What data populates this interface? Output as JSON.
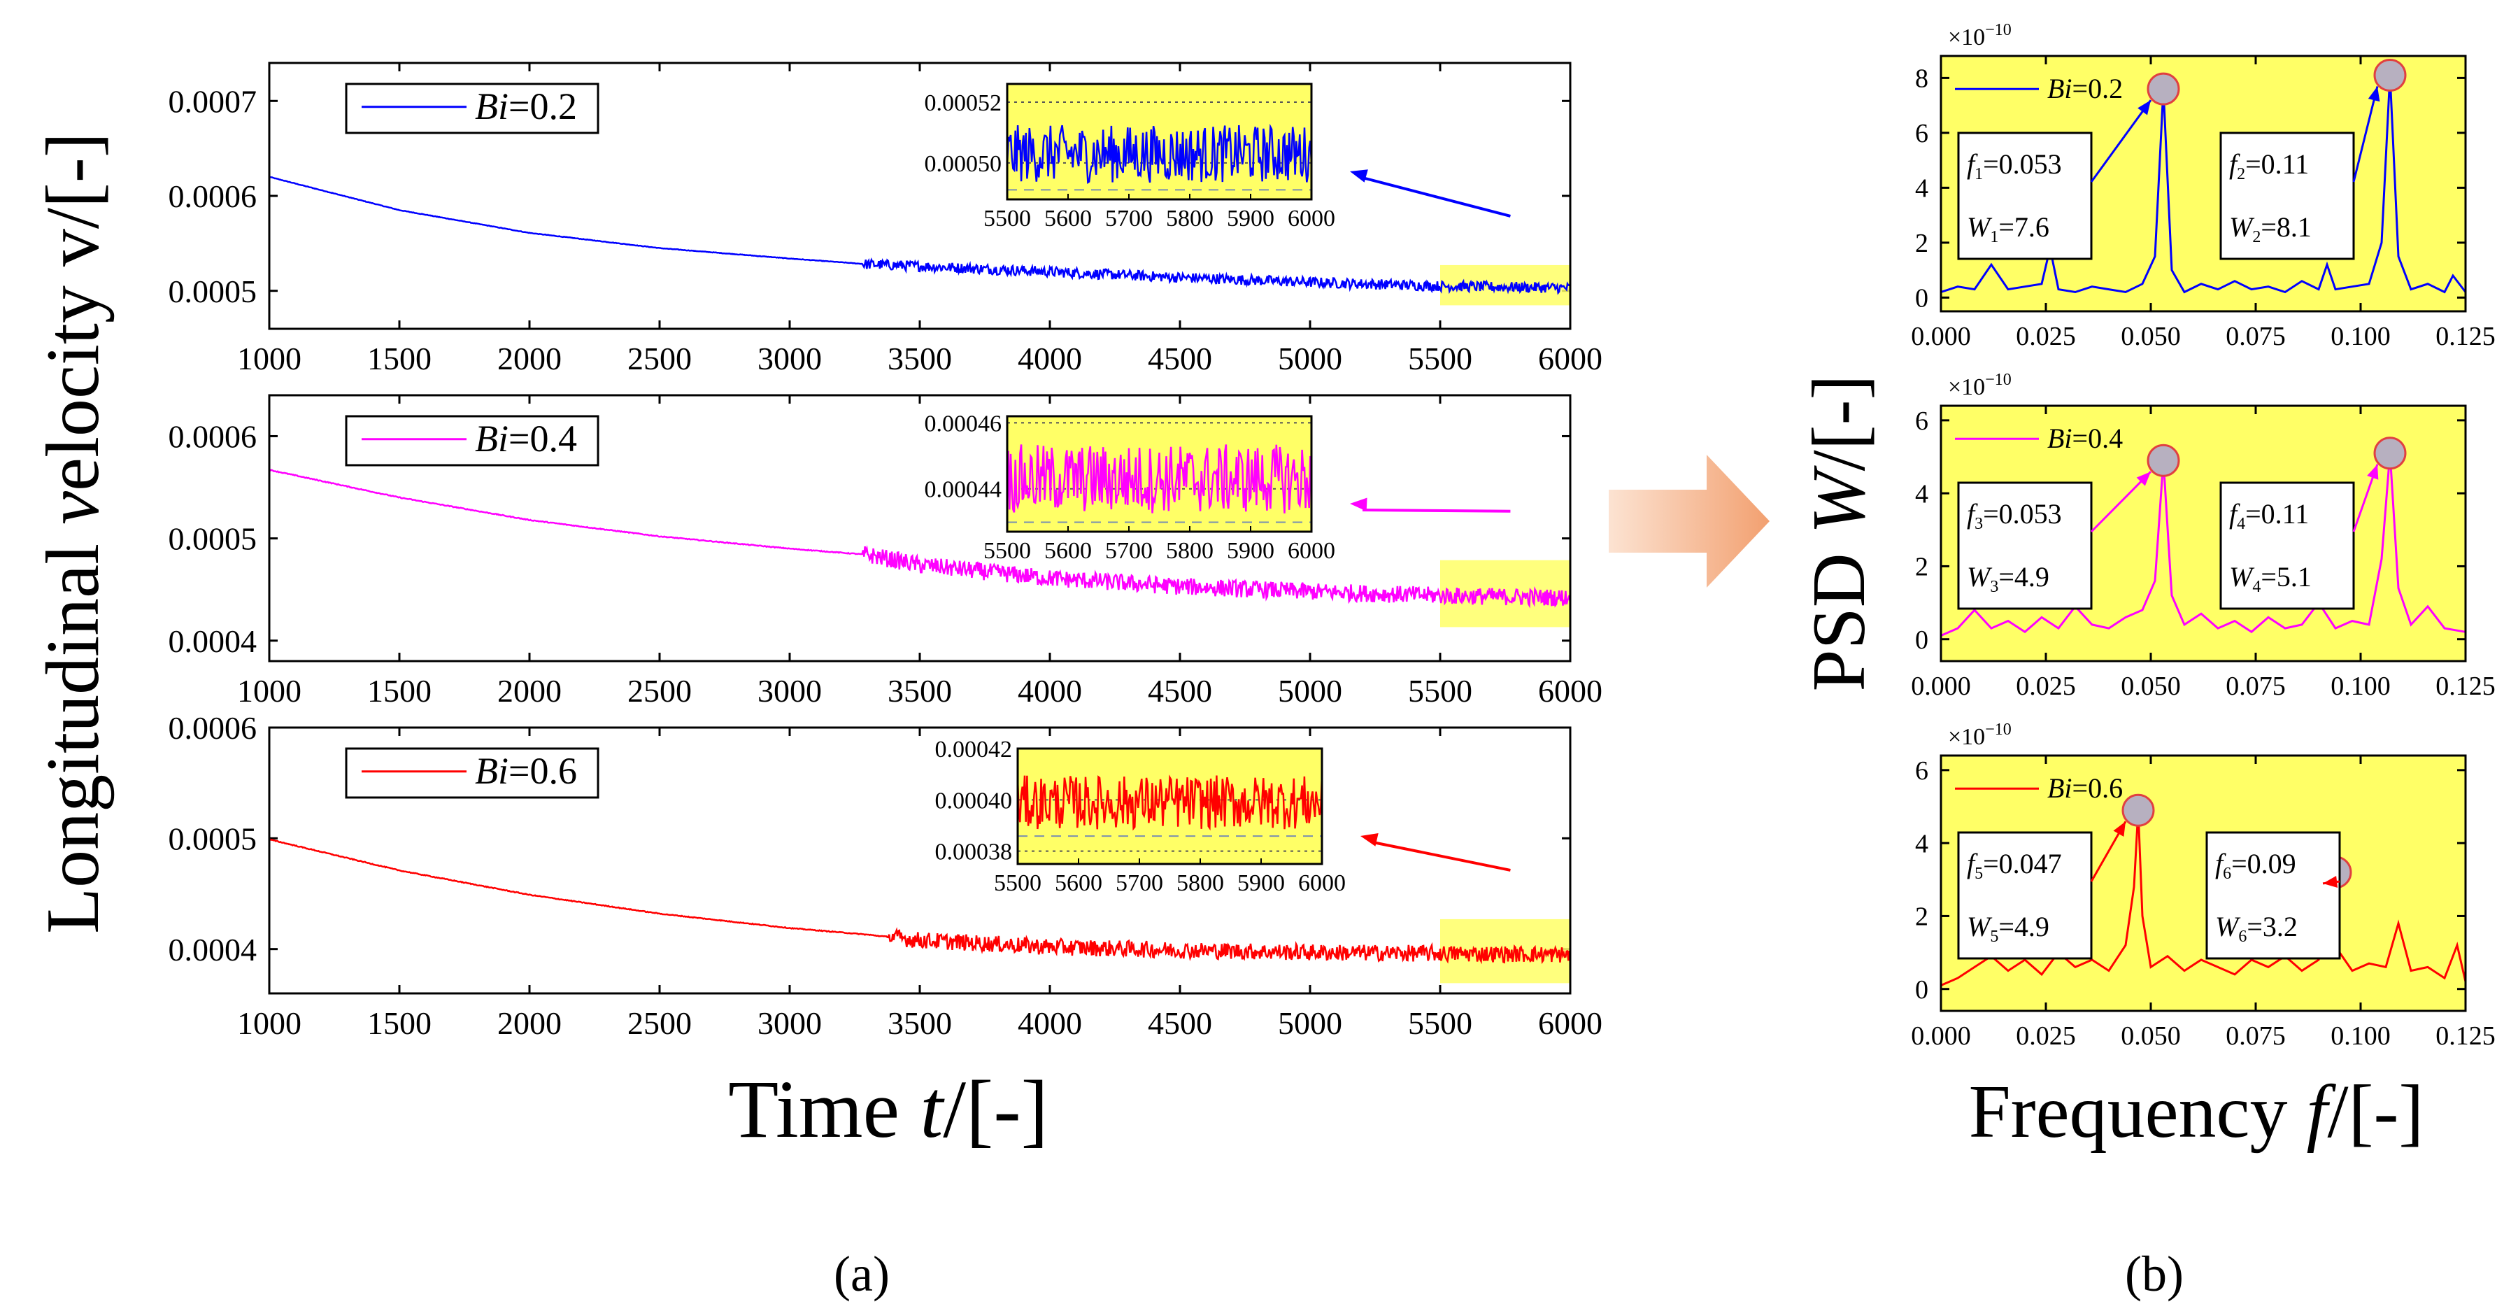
{
  "figure": {
    "panel_labels": [
      "(a)",
      "(b)"
    ],
    "left_ylabel": "Longitudinal velocity v/[-]",
    "left_xlabel": "Time t/[-]",
    "right_ylabel": "PSD W/[-]",
    "right_xlabel": "Frequency f/[-]",
    "psd_multiplier": "×10",
    "psd_multiplier_exp": "−10"
  },
  "chart_data": [
    {
      "id": "v1",
      "type": "line",
      "color": "#0000ff",
      "legend": "Bi=0.2",
      "xlim": [
        1000,
        6000
      ],
      "xticks": [
        1000,
        1500,
        2000,
        2500,
        3000,
        3500,
        4000,
        4500,
        5000,
        5500,
        6000
      ],
      "ylim": [
        0.00046,
        0.00074
      ],
      "yticks": [
        0.0005,
        0.0006,
        0.0007
      ],
      "x": [
        1000,
        1500,
        2000,
        2500,
        3000,
        3300,
        3500,
        4000,
        4500,
        5000,
        5500,
        6000
      ],
      "values": [
        0.00062,
        0.000585,
        0.000561,
        0.000545,
        0.000534,
        0.000528,
        0.000526,
        0.00052,
        0.000514,
        0.000509,
        0.000505,
        0.000503
      ],
      "noise_start": 3280,
      "noise_amp": 5.5e-06,
      "highlight": [
        5500,
        6000
      ],
      "inset": {
        "xlim": [
          5500,
          6000
        ],
        "xticks": [
          5500,
          5600,
          5700,
          5800,
          5900,
          6000
        ],
        "ylim": [
          0.000488,
          0.000526
        ],
        "yticks": [
          0.0005,
          0.00052
        ],
        "ytick_labels": [
          "0.00050",
          "0.00052"
        ],
        "center": 0.000503,
        "amp": 9.5e-06
      }
    },
    {
      "id": "v2",
      "type": "line",
      "color": "#ff00ff",
      "legend": "Bi=0.4",
      "xlim": [
        1000,
        6000
      ],
      "xticks": [
        1000,
        1500,
        2000,
        2500,
        3000,
        3500,
        4000,
        4500,
        5000,
        5500,
        6000
      ],
      "ylim": [
        0.00038,
        0.00064
      ],
      "yticks": [
        0.0004,
        0.0005,
        0.0006
      ],
      "x": [
        1000,
        1500,
        2000,
        2500,
        3000,
        3300,
        3500,
        4000,
        4500,
        5000,
        5500,
        6000
      ],
      "values": [
        0.000567,
        0.00054,
        0.000518,
        0.000502,
        0.00049,
        0.000484,
        0.000474,
        0.000461,
        0.000453,
        0.000448,
        0.000444,
        0.000442
      ],
      "noise_start": 3280,
      "noise_amp": 8.5e-06,
      "highlight": [
        5500,
        6000
      ],
      "inset": {
        "xlim": [
          5500,
          6000
        ],
        "xticks": [
          5500,
          5600,
          5700,
          5800,
          5900,
          6000
        ],
        "ylim": [
          0.000427,
          0.000462
        ],
        "yticks": [
          0.00044,
          0.00046
        ],
        "ytick_labels": [
          "0.00044",
          "0.00046"
        ],
        "center": 0.000443,
        "amp": 1.05e-05
      }
    },
    {
      "id": "v3",
      "type": "line",
      "color": "#ff0000",
      "legend": "Bi=0.6",
      "xlim": [
        1000,
        6000
      ],
      "xticks": [
        1000,
        1500,
        2000,
        2500,
        3000,
        3500,
        4000,
        4500,
        5000,
        5500,
        6000
      ],
      "ylim": [
        0.00036,
        0.0006
      ],
      "yticks": [
        0.0004,
        0.0005,
        0.0006
      ],
      "x": [
        1000,
        1500,
        2000,
        2500,
        3000,
        3300,
        3500,
        4000,
        4500,
        5000,
        5500,
        6000
      ],
      "values": [
        0.000499,
        0.000471,
        0.000449,
        0.000432,
        0.000419,
        0.000413,
        0.000408,
        0.000402,
        0.000399,
        0.000397,
        0.000396,
        0.000395
      ],
      "noise_start": 3380,
      "noise_amp": 7.5e-06,
      "highlight": [
        5500,
        6000
      ],
      "inset": {
        "xlim": [
          5500,
          6000
        ],
        "xticks": [
          5500,
          5600,
          5700,
          5800,
          5900,
          6000
        ],
        "ylim": [
          0.000375,
          0.00042
        ],
        "yticks": [
          0.00038,
          0.0004,
          0.00042
        ],
        "ytick_labels": [
          "0.00038",
          "0.00040",
          "0.00042"
        ],
        "center": 0.000399,
        "amp": 1.05e-05
      }
    },
    {
      "id": "p1",
      "type": "line",
      "color": "#0000ff",
      "legend": "Bi=0.2",
      "xlim": [
        0,
        0.125
      ],
      "xticks": [
        0,
        0.025,
        0.05,
        0.075,
        0.1,
        0.125
      ],
      "xtick_labels": [
        "0.000",
        "0.025",
        "0.050",
        "0.075",
        "0.100",
        "0.125"
      ],
      "ylim": [
        -0.5,
        8.8
      ],
      "yticks": [
        0,
        2,
        4,
        6,
        8
      ],
      "x": [
        0,
        0.004,
        0.008,
        0.012,
        0.016,
        0.02,
        0.024,
        0.026,
        0.028,
        0.032,
        0.036,
        0.04,
        0.044,
        0.048,
        0.051,
        0.053,
        0.055,
        0.058,
        0.062,
        0.066,
        0.07,
        0.074,
        0.078,
        0.082,
        0.086,
        0.09,
        0.092,
        0.094,
        0.098,
        0.102,
        0.105,
        0.107,
        0.109,
        0.112,
        0.116,
        0.12,
        0.122,
        0.125
      ],
      "values": [
        0.2,
        0.4,
        0.3,
        1.2,
        0.3,
        0.4,
        0.5,
        1.8,
        0.3,
        0.2,
        0.4,
        0.3,
        0.2,
        0.5,
        1.5,
        7.6,
        1.0,
        0.2,
        0.5,
        0.3,
        0.6,
        0.3,
        0.4,
        0.2,
        0.6,
        0.3,
        1.2,
        0.3,
        0.4,
        0.5,
        2.0,
        8.1,
        1.5,
        0.3,
        0.5,
        0.2,
        0.8,
        0.2
      ],
      "peaks": [
        {
          "x": 0.053,
          "y": 7.6
        },
        {
          "x": 0.107,
          "y": 8.1
        }
      ],
      "annotations": [
        {
          "f_sub": "1",
          "f_val": "=0.053",
          "w_sub": "1",
          "w_val": "=7.6"
        },
        {
          "f_sub": "2",
          "f_val": "=0.11",
          "w_sub": "2",
          "w_val": "=8.1"
        }
      ]
    },
    {
      "id": "p2",
      "type": "line",
      "color": "#ff00ff",
      "legend": "Bi=0.4",
      "xlim": [
        0,
        0.125
      ],
      "xticks": [
        0,
        0.025,
        0.05,
        0.075,
        0.1,
        0.125
      ],
      "xtick_labels": [
        "0.000",
        "0.025",
        "0.050",
        "0.075",
        "0.100",
        "0.125"
      ],
      "ylim": [
        -0.6,
        6.4
      ],
      "yticks": [
        0,
        2,
        4,
        6
      ],
      "x": [
        0,
        0.004,
        0.008,
        0.012,
        0.016,
        0.02,
        0.024,
        0.028,
        0.032,
        0.036,
        0.04,
        0.044,
        0.048,
        0.051,
        0.053,
        0.055,
        0.058,
        0.062,
        0.066,
        0.07,
        0.074,
        0.078,
        0.082,
        0.086,
        0.09,
        0.094,
        0.098,
        0.102,
        0.105,
        0.107,
        0.109,
        0.112,
        0.116,
        0.12,
        0.125
      ],
      "values": [
        0.1,
        0.3,
        0.8,
        0.3,
        0.5,
        0.2,
        0.6,
        0.3,
        0.9,
        0.4,
        0.3,
        0.6,
        0.8,
        1.6,
        4.9,
        1.2,
        0.4,
        0.7,
        0.3,
        0.5,
        0.2,
        0.6,
        0.3,
        0.4,
        1.0,
        0.3,
        0.5,
        0.4,
        2.2,
        5.1,
        1.4,
        0.4,
        0.9,
        0.3,
        0.2
      ],
      "peaks": [
        {
          "x": 0.053,
          "y": 4.9
        },
        {
          "x": 0.107,
          "y": 5.1
        }
      ],
      "annotations": [
        {
          "f_sub": "3",
          "f_val": "=0.053",
          "w_sub": "3",
          "w_val": "=4.9"
        },
        {
          "f_sub": "4",
          "f_val": "=0.11",
          "w_sub": "4",
          "w_val": "=5.1"
        }
      ]
    },
    {
      "id": "p3",
      "type": "line",
      "color": "#ff0000",
      "legend": "Bi=0.6",
      "xlim": [
        0,
        0.125
      ],
      "xticks": [
        0,
        0.025,
        0.05,
        0.075,
        0.1,
        0.125
      ],
      "xtick_labels": [
        "0.000",
        "0.025",
        "0.050",
        "0.075",
        "0.100",
        "0.125"
      ],
      "ylim": [
        -0.6,
        6.4
      ],
      "yticks": [
        0,
        2,
        4,
        6
      ],
      "x": [
        0,
        0.004,
        0.008,
        0.012,
        0.016,
        0.02,
        0.024,
        0.028,
        0.032,
        0.036,
        0.04,
        0.044,
        0.046,
        0.047,
        0.048,
        0.05,
        0.054,
        0.058,
        0.062,
        0.066,
        0.07,
        0.074,
        0.078,
        0.082,
        0.086,
        0.09,
        0.093,
        0.095,
        0.098,
        0.102,
        0.106,
        0.109,
        0.112,
        0.116,
        0.12,
        0.123,
        0.125
      ],
      "values": [
        0.1,
        0.3,
        0.6,
        0.9,
        0.5,
        0.8,
        0.4,
        1.0,
        0.6,
        0.8,
        0.5,
        1.2,
        2.8,
        4.9,
        2.0,
        0.6,
        0.9,
        0.5,
        0.8,
        0.6,
        0.4,
        0.8,
        0.6,
        0.9,
        0.5,
        0.8,
        3.2,
        1.0,
        0.5,
        0.7,
        0.6,
        1.8,
        0.5,
        0.6,
        0.3,
        1.2,
        0.2
      ],
      "peaks": [
        {
          "x": 0.047,
          "y": 4.9
        },
        {
          "x": 0.094,
          "y": 3.2
        }
      ],
      "annotations": [
        {
          "f_sub": "5",
          "f_val": "=0.047",
          "w_sub": "5",
          "w_val": "=4.9"
        },
        {
          "f_sub": "6",
          "f_val": "=0.09",
          "w_sub": "6",
          "w_val": "=3.2"
        }
      ]
    }
  ]
}
